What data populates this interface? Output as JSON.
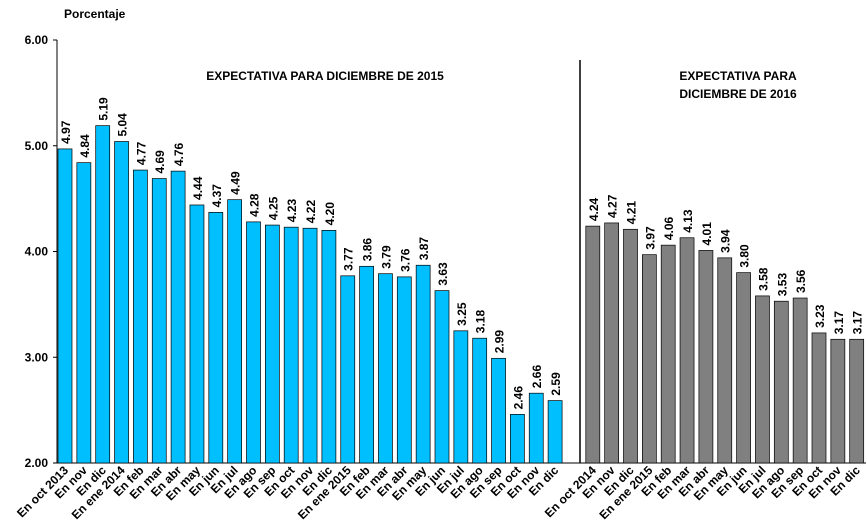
{
  "chart_data": {
    "type": "bar",
    "y_label": "Porcentaje",
    "annotations": [
      "EXPECTATIVA  PARA  DICIEMBRE DE 2015",
      "EXPECTATIVA PARA",
      "DICIEMBRE DE 2016"
    ],
    "categories": [
      "En oct 2013",
      "En nov",
      "En dic",
      "En ene 2014",
      "En feb",
      "En mar",
      "En abr",
      "En may",
      "En jun",
      "En jul",
      "En ago",
      "En sep",
      "En oct",
      "En nov",
      "En dic",
      "En ene 2015",
      "En feb",
      "En mar",
      "En abr",
      "En may",
      "En jun",
      "En jul",
      "En ago",
      "En sep",
      "En oct",
      "En nov",
      "En dic",
      null,
      "En oct 2014",
      "En nov",
      "En dic",
      "En ene 2015",
      "En feb",
      "En mar",
      "En abr",
      "En may",
      "En jun",
      "En jul",
      "En ago",
      "En sep",
      "En oct",
      "En nov",
      "En dic"
    ],
    "series": [
      {
        "name": "Expectativa para diciembre de 2015",
        "color": "#00bfff",
        "values": [
          4.97,
          4.84,
          5.19,
          5.04,
          4.77,
          4.69,
          4.76,
          4.44,
          4.37,
          4.49,
          4.28,
          4.25,
          4.23,
          4.22,
          4.2,
          3.77,
          3.86,
          3.79,
          3.76,
          3.87,
          3.63,
          3.25,
          3.18,
          2.99,
          2.46,
          2.66,
          2.59,
          null,
          null,
          null,
          null,
          null,
          null,
          null,
          null,
          null,
          null,
          null,
          null,
          null,
          null,
          null,
          null
        ],
        "value_labels": [
          "4.97",
          "4.84",
          "5.19",
          "5.04",
          "4.77",
          "4.69",
          "4.76",
          "4.44",
          "4.37",
          "4.49",
          "4.28",
          "4.25",
          "4.23",
          "4.22",
          "4.20",
          "3.77",
          "3.86",
          "3.79",
          "3.76",
          "3.87",
          "3.63",
          "3.25",
          "3.18",
          "2.99",
          "2.46",
          "2.66",
          "2.59",
          null,
          null,
          null,
          null,
          null,
          null,
          null,
          null,
          null,
          null,
          null,
          null,
          null,
          null,
          null,
          null
        ]
      },
      {
        "name": "Expectativa para diciembre de 2016",
        "color": "#808080",
        "values": [
          null,
          null,
          null,
          null,
          null,
          null,
          null,
          null,
          null,
          null,
          null,
          null,
          null,
          null,
          null,
          null,
          null,
          null,
          null,
          null,
          null,
          null,
          null,
          null,
          null,
          null,
          null,
          null,
          4.24,
          4.27,
          4.21,
          3.97,
          4.06,
          4.13,
          4.01,
          3.94,
          3.8,
          3.58,
          3.53,
          3.56,
          3.23,
          3.17,
          3.17
        ],
        "value_labels": [
          null,
          null,
          null,
          null,
          null,
          null,
          null,
          null,
          null,
          null,
          null,
          null,
          null,
          null,
          null,
          null,
          null,
          null,
          null,
          null,
          null,
          null,
          null,
          null,
          null,
          null,
          null,
          null,
          "4.24",
          "4.27",
          "4.21",
          "3.97",
          "4.06",
          "4.13",
          "4.01",
          "3.94",
          "3.80",
          "3.58",
          "3.53",
          "3.56",
          "3.23",
          "3.17",
          "3.17"
        ]
      }
    ],
    "ylim": [
      2,
      6
    ],
    "yticks": [
      {
        "value": 2,
        "label": "2.00"
      },
      {
        "value": 3,
        "label": "3.00"
      },
      {
        "value": 4,
        "label": "4.00"
      },
      {
        "value": 5,
        "label": "5.00"
      },
      {
        "value": 6,
        "label": "6.00"
      }
    ],
    "grid": false
  }
}
